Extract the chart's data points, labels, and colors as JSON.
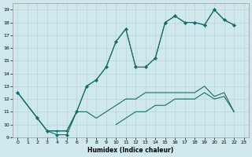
{
  "xlabel": "Humidex (Indice chaleur)",
  "bg_color": "#cfe8ec",
  "grid_color": "#b8d4d8",
  "line_color": "#1a6b6b",
  "xlim": [
    -0.5,
    23.5
  ],
  "ylim": [
    9,
    19.5
  ],
  "yticks": [
    9,
    10,
    11,
    12,
    13,
    14,
    15,
    16,
    17,
    18,
    19
  ],
  "xticks": [
    0,
    1,
    2,
    3,
    4,
    5,
    6,
    7,
    8,
    9,
    10,
    11,
    12,
    13,
    14,
    15,
    16,
    17,
    18,
    19,
    20,
    21,
    22,
    23
  ],
  "line1_x": [
    0,
    1,
    2,
    3,
    4,
    5,
    6,
    7,
    8,
    9,
    10,
    11,
    12,
    13,
    14,
    15,
    16,
    17,
    18,
    19,
    20,
    21,
    22
  ],
  "line1_y": [
    12.5,
    11.5,
    10.5,
    9.5,
    9.5,
    9.5,
    11.0,
    11.0,
    10.5,
    11.0,
    11.5,
    12.0,
    12.0,
    12.5,
    12.5,
    12.5,
    12.5,
    12.5,
    12.5,
    13.0,
    12.2,
    12.5,
    11.0
  ],
  "line2_x": [
    10,
    11,
    12,
    13,
    14,
    15,
    16,
    17,
    18,
    19,
    20,
    21,
    22
  ],
  "line2_y": [
    10.0,
    10.5,
    11.0,
    11.0,
    11.5,
    11.5,
    12.0,
    12.0,
    12.0,
    12.5,
    12.0,
    12.2,
    11.0
  ],
  "line3_x": [
    0,
    2,
    3,
    4,
    5,
    6,
    7,
    8,
    9,
    10,
    11,
    12,
    13,
    14,
    15,
    16,
    17,
    18,
    19,
    20,
    21,
    22
  ],
  "line3_y": [
    12.5,
    10.5,
    9.5,
    9.5,
    9.5,
    11.0,
    13.0,
    13.5,
    14.5,
    16.5,
    17.5,
    14.5,
    14.5,
    15.2,
    18.0,
    18.5,
    18.0,
    18.0,
    17.8,
    19.0,
    18.2,
    17.8
  ],
  "line4_x": [
    0,
    2,
    3,
    4,
    5,
    6,
    7,
    8,
    9,
    10,
    11,
    12,
    13,
    14,
    15,
    16,
    17,
    18,
    19,
    20,
    21,
    22
  ],
  "line4_y": [
    12.5,
    10.5,
    9.5,
    9.2,
    9.2,
    11.0,
    13.0,
    13.5,
    14.5,
    16.5,
    17.5,
    14.5,
    14.5,
    15.2,
    18.0,
    18.5,
    18.0,
    18.0,
    17.8,
    19.0,
    18.2,
    17.8
  ]
}
